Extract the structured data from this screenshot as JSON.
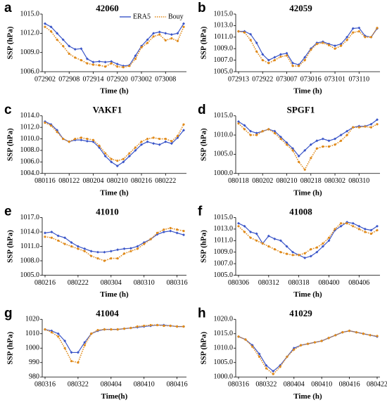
{
  "chart_data": [
    {
      "type": "line",
      "label": "a",
      "title": "42060",
      "ylabel": "SSP (hPa)",
      "xlabel": "Time (h)",
      "legend": "top-right",
      "categories": [
        "072902",
        null,
        null,
        null,
        "072908",
        null,
        null,
        null,
        "072914",
        null,
        null,
        null,
        "072920",
        null,
        null,
        null,
        "073002",
        null,
        null,
        null,
        "073008",
        null,
        null,
        null
      ],
      "ylim": [
        1006,
        1015
      ],
      "yticks": [
        {
          "value": 1006,
          "label": "1006.0"
        },
        {
          "value": 1009,
          "label": "1009.0"
        },
        {
          "value": 1012,
          "label": "1012.0"
        },
        {
          "value": 1015,
          "label": "1015.0"
        }
      ],
      "series": [
        {
          "name": "ERA5",
          "color": "#3a55c8",
          "values": [
            1013.5,
            1013,
            1012,
            1011,
            1010,
            1009.5,
            1009.6,
            1008,
            1007.5,
            1007.6,
            1007.5,
            1007.6,
            1007.2,
            1006.9,
            1007,
            1008.5,
            1010,
            1011,
            1012,
            1012.2,
            1012,
            1011.8,
            1012,
            1013.5
          ]
        },
        {
          "name": "Bouy",
          "color": "#e08a1a",
          "values": [
            1013,
            1012.3,
            1011,
            1010,
            1008.8,
            1008.2,
            1007.8,
            1007.3,
            1007.1,
            1007,
            1006.8,
            1007.3,
            1006.8,
            1006.7,
            1006.9,
            1008,
            1009.8,
            1010.5,
            1011.5,
            1011.8,
            1010.9,
            1011.2,
            1010.8,
            1013
          ]
        }
      ]
    },
    {
      "type": "line",
      "label": "b",
      "title": "42059",
      "ylabel": "SSP (hPa)",
      "xlabel": "Time (h)",
      "categories": [
        "072913",
        null,
        null,
        null,
        "072922",
        null,
        null,
        null,
        "073007",
        null,
        null,
        null,
        "073016",
        null,
        null,
        null,
        "073101",
        null,
        null,
        null,
        "073110",
        null,
        null,
        null
      ],
      "ylim": [
        1005,
        1015
      ],
      "yticks": [
        {
          "value": 1005,
          "label": "1005.0"
        },
        {
          "value": 1007,
          "label": "1007.0"
        },
        {
          "value": 1009,
          "label": "1009.0"
        },
        {
          "value": 1011,
          "label": "1011.0"
        },
        {
          "value": 1013,
          "label": "1013.0"
        },
        {
          "value": 1015,
          "label": "1015.0"
        }
      ],
      "series": [
        {
          "color": "#3a55c8",
          "values": [
            1012,
            1012,
            1011.5,
            1010,
            1008,
            1007,
            1007.5,
            1008,
            1008.2,
            1006.5,
            1006.2,
            1007.5,
            1009,
            1010,
            1010.2,
            1009.8,
            1009.5,
            1009.8,
            1011,
            1012.5,
            1012.6,
            1011.2,
            1011,
            1012.5
          ]
        },
        {
          "color": "#e08a1a",
          "values": [
            1012,
            1011.8,
            1010.5,
            1008.5,
            1007,
            1006.5,
            1007,
            1007.6,
            1007.8,
            1006,
            1006,
            1007,
            1008.8,
            1009.8,
            1010,
            1009.6,
            1009,
            1009.5,
            1010.5,
            1011.8,
            1012,
            1011,
            1011,
            1012.6
          ]
        }
      ]
    },
    {
      "type": "line",
      "label": "c",
      "title": "VAKF1",
      "ylabel": "SSP (hPa)",
      "xlabel": "Time (h)",
      "categories": [
        "080116",
        null,
        null,
        null,
        "080122",
        null,
        null,
        null,
        "080204",
        null,
        null,
        null,
        "080210",
        null,
        null,
        null,
        "080216",
        null,
        null,
        null,
        "080222",
        null,
        null,
        null
      ],
      "ylim": [
        1004,
        1014
      ],
      "yticks": [
        {
          "value": 1004,
          "label": "1004.0"
        },
        {
          "value": 1006,
          "label": "1006.0"
        },
        {
          "value": 1008,
          "label": "1008.0"
        },
        {
          "value": 1010,
          "label": "1010.0"
        },
        {
          "value": 1012,
          "label": "1012.0"
        },
        {
          "value": 1014,
          "label": "1014.0"
        }
      ],
      "series": [
        {
          "color": "#3a55c8",
          "values": [
            1013,
            1012.5,
            1011.5,
            1010,
            1009.5,
            1009.8,
            1009.8,
            1009.6,
            1009.5,
            1008.5,
            1007,
            1006,
            1005.3,
            1006,
            1007,
            1008,
            1009,
            1009.5,
            1009.2,
            1009,
            1009.5,
            1009.2,
            1010.2,
            1011.5
          ]
        },
        {
          "color": "#e08a1a",
          "values": [
            1012.8,
            1012.3,
            1011.2,
            1010,
            1009.5,
            1010,
            1010.2,
            1010,
            1009.8,
            1008.8,
            1007.5,
            1006.5,
            1006.2,
            1006.5,
            1007.5,
            1008.5,
            1009.5,
            1010,
            1010.2,
            1010,
            1010,
            1009.6,
            1010.5,
            1012.5
          ]
        }
      ]
    },
    {
      "type": "line",
      "label": "d",
      "title": "SPGF1",
      "ylabel": "SSP (hPa)",
      "xlabel": "Time (h)",
      "categories": [
        "080118",
        null,
        null,
        null,
        "080202",
        null,
        null,
        null,
        "080210",
        null,
        null,
        null,
        "080218",
        null,
        null,
        null,
        "080302",
        null,
        null,
        null,
        "080310",
        null,
        null,
        null
      ],
      "ylim": [
        1000,
        1015
      ],
      "yticks": [
        {
          "value": 1000,
          "label": "1000.0"
        },
        {
          "value": 1005,
          "label": "1005.0"
        },
        {
          "value": 1010,
          "label": "1010.0"
        },
        {
          "value": 1015,
          "label": "1015.0"
        }
      ],
      "series": [
        {
          "color": "#3a55c8",
          "values": [
            1013.5,
            1012.5,
            1011,
            1010.5,
            1011,
            1011.5,
            1011,
            1009.5,
            1008,
            1006.5,
            1004.5,
            1006,
            1007.5,
            1008.5,
            1009,
            1008.5,
            1009,
            1010,
            1011,
            1012,
            1012.3,
            1012.3,
            1012.8,
            1014
          ]
        },
        {
          "color": "#e08a1a",
          "values": [
            1013,
            1011.5,
            1010,
            1010,
            1011,
            1011.5,
            1010.5,
            1009,
            1007.5,
            1006,
            1003,
            1001,
            1004,
            1006.5,
            1007,
            1007,
            1007.5,
            1008.5,
            1010,
            1012,
            1012,
            1012.2,
            1012,
            1012.8
          ]
        }
      ]
    },
    {
      "type": "line",
      "label": "e",
      "title": "41010",
      "ylabel": "SSP (hPa)",
      "xlabel": "Time (h)",
      "categories": [
        "080216",
        null,
        null,
        null,
        null,
        "080222",
        null,
        null,
        null,
        null,
        "080304",
        null,
        null,
        null,
        null,
        "080310",
        null,
        null,
        null,
        null,
        "080316",
        null
      ],
      "ylim": [
        1005,
        1017
      ],
      "yticks": [
        {
          "value": 1005,
          "label": "1005.0"
        },
        {
          "value": 1008,
          "label": "1008.0"
        },
        {
          "value": 1011,
          "label": "1011.0"
        },
        {
          "value": 1014,
          "label": "1014.0"
        },
        {
          "value": 1017,
          "label": "1017.0"
        }
      ],
      "series": [
        {
          "color": "#3a55c8",
          "values": [
            1013.8,
            1014,
            1013.2,
            1012.8,
            1011.8,
            1011,
            1010.5,
            1010,
            1009.8,
            1009.8,
            1010,
            1010.3,
            1010.5,
            1010.6,
            1011,
            1011.8,
            1012.5,
            1013.5,
            1014,
            1014.2,
            1013.8,
            1013.4
          ]
        },
        {
          "color": "#e08a1a",
          "values": [
            1013,
            1012.8,
            1012.2,
            1011.5,
            1011,
            1010.5,
            1010,
            1009,
            1008.5,
            1008,
            1008.5,
            1008.5,
            1009.5,
            1010,
            1010.5,
            1011.5,
            1012.5,
            1013.8,
            1014.5,
            1014.8,
            1014.5,
            1014.2
          ]
        }
      ]
    },
    {
      "type": "line",
      "label": "f",
      "title": "41008",
      "ylabel": "SSP (hPa)",
      "xlabel": "Time (h)",
      "categories": [
        "080306",
        null,
        null,
        null,
        null,
        "080312",
        null,
        null,
        null,
        null,
        "080318",
        null,
        null,
        null,
        null,
        "080400",
        null,
        null,
        null,
        null,
        "080406",
        null,
        null,
        null
      ],
      "ylim": [
        1005,
        1015
      ],
      "yticks": [
        {
          "value": 1005,
          "label": "1005.0"
        },
        {
          "value": 1007,
          "label": "1007.0"
        },
        {
          "value": 1009,
          "label": "1009.0"
        },
        {
          "value": 1011,
          "label": "1011.0"
        },
        {
          "value": 1013,
          "label": "1013.0"
        },
        {
          "value": 1015,
          "label": "1015.0"
        }
      ],
      "series": [
        {
          "color": "#3a55c8",
          "values": [
            1014,
            1013.5,
            1012.5,
            1012.2,
            1010.5,
            1011.8,
            1011.3,
            1011,
            1010,
            1009,
            1008.5,
            1008,
            1008.3,
            1009,
            1010,
            1011,
            1012.8,
            1013.5,
            1014.2,
            1014,
            1013.5,
            1013,
            1012.8,
            1013.5
          ]
        },
        {
          "color": "#e08a1a",
          "values": [
            1013.5,
            1012.5,
            1011.5,
            1011,
            1010.5,
            1010,
            1009.5,
            1009,
            1008.7,
            1008.5,
            1008.5,
            1008.8,
            1009.5,
            1009.8,
            1010.5,
            1011.5,
            1013,
            1014,
            1014,
            1013.5,
            1013,
            1012.5,
            1012.2,
            1012.8
          ]
        }
      ]
    },
    {
      "type": "line",
      "label": "g",
      "title": "41004",
      "ylabel": "SSP (hPa)",
      "xlabel": "Time(h)",
      "categories": [
        "080316",
        null,
        null,
        null,
        null,
        "080322",
        null,
        null,
        null,
        null,
        "080404",
        null,
        null,
        null,
        null,
        "080410",
        null,
        null,
        null,
        null,
        "080416",
        null
      ],
      "ylim": [
        980,
        1020
      ],
      "yticks": [
        980,
        990,
        1000,
        1010,
        1020
      ],
      "series": [
        {
          "color": "#3a55c8",
          "values": [
            1013,
            1012,
            1010,
            1005,
            997,
            997,
            1004,
            1010,
            1012,
            1013,
            1013,
            1013,
            1013.5,
            1014,
            1014.5,
            1015,
            1015.5,
            1016,
            1016,
            1015.5,
            1015,
            1015
          ]
        },
        {
          "color": "#e08a1a",
          "values": [
            1013,
            1011,
            1008,
            1000,
            991,
            990,
            1002,
            1010,
            1012.5,
            1013,
            1013,
            1013,
            1013.5,
            1014,
            1015,
            1015.5,
            1016,
            1016,
            1015.5,
            1015.5,
            1015,
            1015
          ]
        }
      ]
    },
    {
      "type": "line",
      "label": "h",
      "title": "41029",
      "ylabel": "SSP (hPa)",
      "xlabel": "Time (h)",
      "categories": [
        "080316",
        null,
        null,
        null,
        "080322",
        null,
        null,
        null,
        "080404",
        null,
        null,
        null,
        "080410",
        null,
        null,
        null,
        "080416",
        null,
        null,
        null,
        "080422"
      ],
      "ylim": [
        1000,
        1020
      ],
      "yticks": [
        {
          "value": 1000,
          "label": "1000.0"
        },
        {
          "value": 1005,
          "label": "1005.0"
        },
        {
          "value": 1010,
          "label": "1010.0"
        },
        {
          "value": 1015,
          "label": "1015.0"
        },
        {
          "value": 1020,
          "label": "1020.0"
        }
      ],
      "series": [
        {
          "color": "#3a55c8",
          "values": [
            1014,
            1013,
            1011,
            1008,
            1004,
            1002,
            1004,
            1007,
            1010,
            1011,
            1011.5,
            1012,
            1012.5,
            1013.5,
            1014.5,
            1015.5,
            1016,
            1015.5,
            1015,
            1014.5,
            1014
          ]
        },
        {
          "color": "#e08a1a",
          "values": [
            1014,
            1013,
            1010.5,
            1007,
            1003,
            1001,
            1003.5,
            1007,
            1009.5,
            1011,
            1011.5,
            1012,
            1012.5,
            1013.5,
            1014.5,
            1015.5,
            1016,
            1015.5,
            1015,
            1014.5,
            1014.2
          ]
        }
      ]
    }
  ]
}
